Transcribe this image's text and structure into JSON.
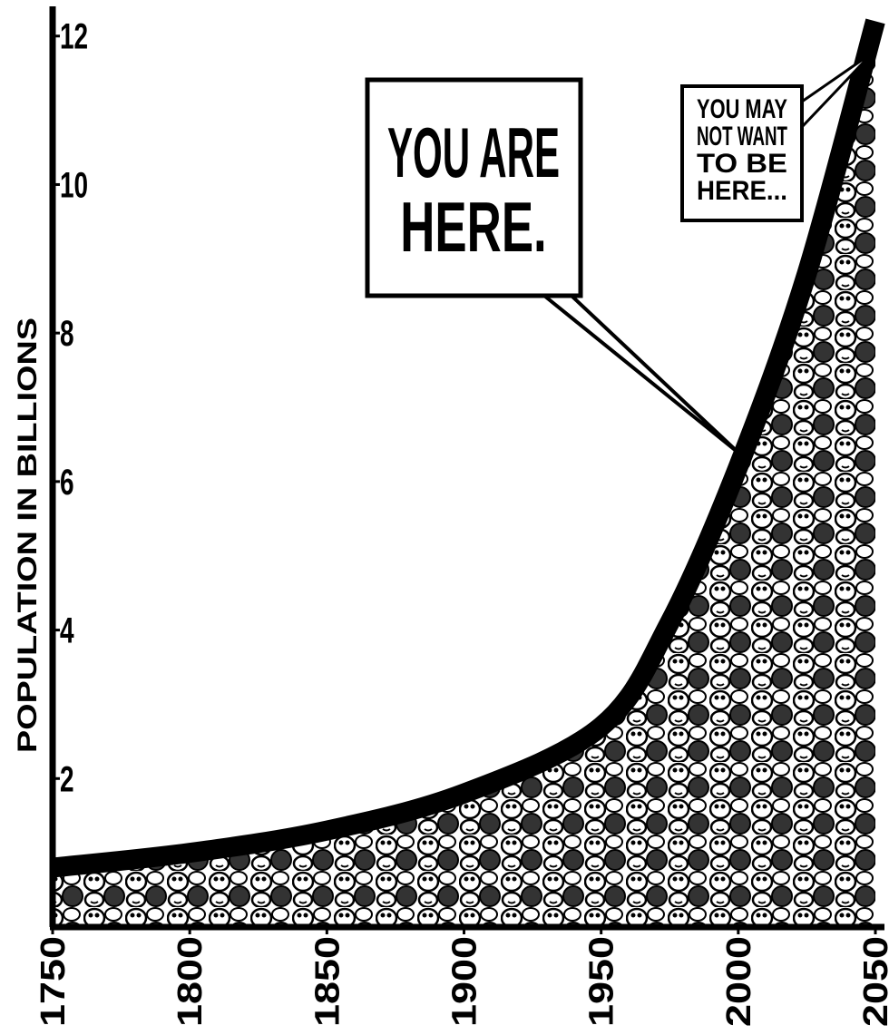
{
  "chart_data": {
    "type": "area",
    "y_label": "POPULATION IN BILLIONS",
    "x": [
      1750,
      1800,
      1850,
      1900,
      1950,
      1975,
      2000,
      2025,
      2050
    ],
    "values": [
      0.8,
      1.0,
      1.3,
      1.8,
      2.7,
      4.1,
      6.2,
      8.8,
      12.2
    ],
    "color": "#000000",
    "xlim": [
      1750,
      2050
    ],
    "xticks": [
      1750,
      1800,
      1850,
      1900,
      1950,
      2000,
      2050
    ],
    "ylim": [
      0,
      12.4
    ],
    "yticks": [
      2,
      4,
      6,
      8,
      10,
      12
    ],
    "annotations": [
      {
        "lines": [
          "YOU ARE",
          "HERE."
        ]
      },
      {
        "lines": [
          "YOU MAY",
          "NOT WANT",
          "TO BE",
          "HERE..."
        ]
      }
    ]
  }
}
